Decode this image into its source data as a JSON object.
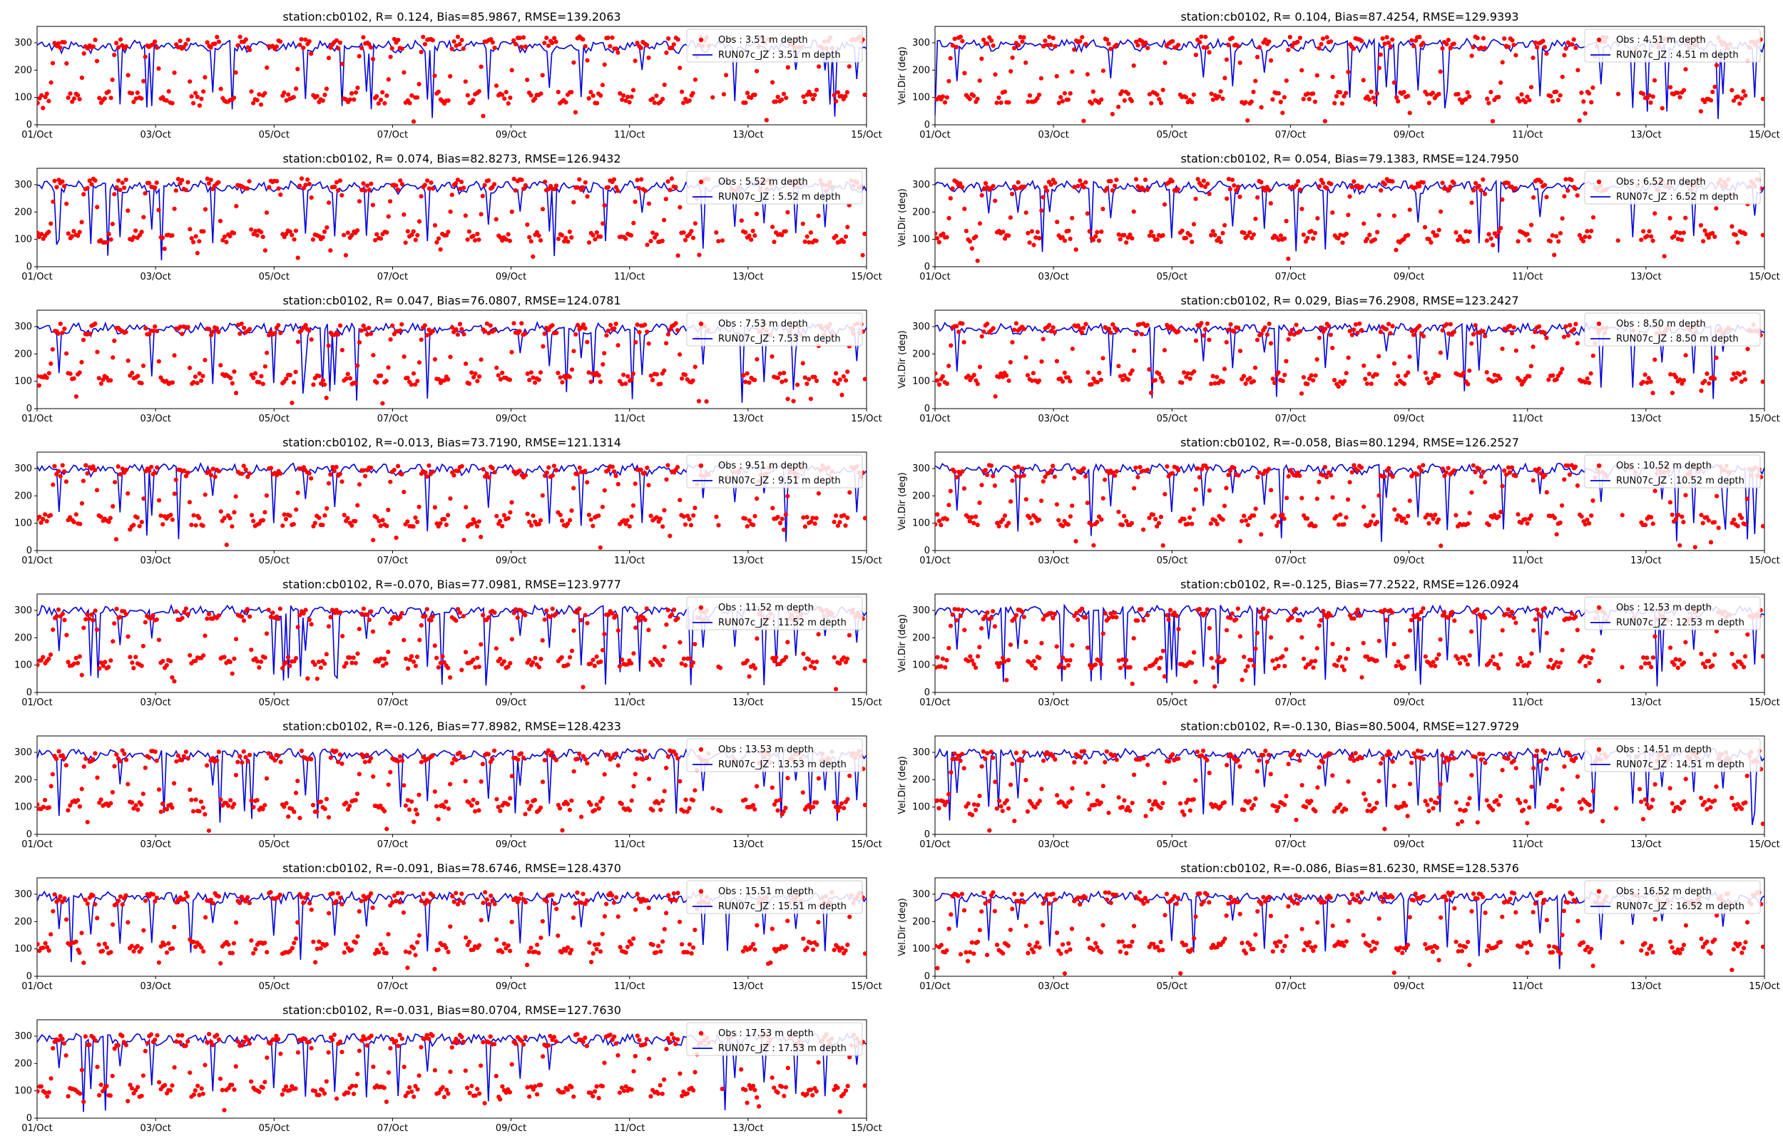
{
  "colors": {
    "obs": "#ff0000",
    "model": "#0000dd",
    "axes": "#000000",
    "legend_bg": "#ffffff",
    "legend_border": "#cccccc"
  },
  "chart_data": [
    {
      "type": "scatter+line",
      "title": "station:cb0102, R= 0.124, Bias=85.9867, RMSE=139.2063",
      "ylabel": "",
      "xlim": [
        "01/Oct",
        "15/Oct"
      ],
      "ylim": [
        0,
        360
      ],
      "yticks": [
        0,
        100,
        200,
        300
      ],
      "xticks": [
        "01/Oct",
        "03/Oct",
        "05/Oct",
        "07/Oct",
        "09/Oct",
        "11/Oct",
        "13/Oct",
        "15/Oct"
      ],
      "legend_position": "upper right",
      "series": [
        {
          "name": "Obs : 3.51 m depth",
          "kind": "scatter",
          "low_level": 100,
          "high_level": 300
        },
        {
          "name": "RUN07c_JZ : 3.51 m depth",
          "kind": "line",
          "base_level": 285
        }
      ]
    },
    {
      "type": "scatter+line",
      "title": "station:cb0102, R= 0.104, Bias=87.4254, RMSE=129.9393",
      "ylabel": "Vel.Dir (deg)",
      "xlim": [
        "01/Oct",
        "15/Oct"
      ],
      "ylim": [
        0,
        360
      ],
      "yticks": [
        0,
        100,
        200,
        300
      ],
      "xticks": [
        "01/Oct",
        "03/Oct",
        "05/Oct",
        "07/Oct",
        "09/Oct",
        "11/Oct",
        "13/Oct",
        "15/Oct"
      ],
      "legend_position": "upper right",
      "series": [
        {
          "name": "Obs : 4.51 m depth",
          "kind": "scatter",
          "low_level": 100,
          "high_level": 300
        },
        {
          "name": "RUN07c_JZ : 4.51 m depth",
          "kind": "line",
          "base_level": 290
        }
      ]
    },
    {
      "type": "scatter+line",
      "title": "station:cb0102, R= 0.074, Bias=82.8273, RMSE=126.9432",
      "ylabel": "",
      "xlim": [
        "01/Oct",
        "15/Oct"
      ],
      "ylim": [
        0,
        360
      ],
      "yticks": [
        0,
        100,
        200,
        300
      ],
      "xticks": [
        "01/Oct",
        "03/Oct",
        "05/Oct",
        "07/Oct",
        "09/Oct",
        "11/Oct",
        "13/Oct",
        "15/Oct"
      ],
      "legend_position": "upper right",
      "series": [
        {
          "name": "Obs : 5.52 m depth",
          "kind": "scatter",
          "low_level": 110,
          "high_level": 300
        },
        {
          "name": "RUN07c_JZ : 5.52 m depth",
          "kind": "line",
          "base_level": 290
        }
      ]
    },
    {
      "type": "scatter+line",
      "title": "station:cb0102, R= 0.054, Bias=79.1383, RMSE=124.7950",
      "ylabel": "Vel.Dir (deg)",
      "xlim": [
        "01/Oct",
        "15/Oct"
      ],
      "ylim": [
        0,
        360
      ],
      "yticks": [
        0,
        100,
        200,
        300
      ],
      "xticks": [
        "01/Oct",
        "03/Oct",
        "05/Oct",
        "07/Oct",
        "09/Oct",
        "11/Oct",
        "13/Oct",
        "15/Oct"
      ],
      "legend_position": "upper right",
      "series": [
        {
          "name": "Obs : 6.52 m depth",
          "kind": "scatter",
          "low_level": 110,
          "high_level": 300
        },
        {
          "name": "RUN07c_JZ : 6.52 m depth",
          "kind": "line",
          "base_level": 290
        }
      ]
    },
    {
      "type": "scatter+line",
      "title": "station:cb0102, R= 0.047, Bias=76.0807, RMSE=124.0781",
      "ylabel": "",
      "xlim": [
        "01/Oct",
        "15/Oct"
      ],
      "ylim": [
        0,
        360
      ],
      "yticks": [
        0,
        100,
        200,
        300
      ],
      "xticks": [
        "01/Oct",
        "03/Oct",
        "05/Oct",
        "07/Oct",
        "09/Oct",
        "11/Oct",
        "13/Oct",
        "15/Oct"
      ],
      "legend_position": "upper right",
      "series": [
        {
          "name": "Obs : 7.53 m depth",
          "kind": "scatter",
          "low_level": 110,
          "high_level": 290
        },
        {
          "name": "RUN07c_JZ : 7.53 m depth",
          "kind": "line",
          "base_level": 290
        }
      ]
    },
    {
      "type": "scatter+line",
      "title": "station:cb0102, R= 0.029, Bias=76.2908, RMSE=123.2427",
      "ylabel": "Vel.Dir (deg)",
      "xlim": [
        "01/Oct",
        "15/Oct"
      ],
      "ylim": [
        0,
        360
      ],
      "yticks": [
        0,
        100,
        200,
        300
      ],
      "xticks": [
        "01/Oct",
        "03/Oct",
        "05/Oct",
        "07/Oct",
        "09/Oct",
        "11/Oct",
        "13/Oct",
        "15/Oct"
      ],
      "legend_position": "upper right",
      "series": [
        {
          "name": "Obs : 8.50 m depth",
          "kind": "scatter",
          "low_level": 110,
          "high_level": 290
        },
        {
          "name": "RUN07c_JZ : 8.50 m depth",
          "kind": "line",
          "base_level": 290
        }
      ]
    },
    {
      "type": "scatter+line",
      "title": "station:cb0102, R=-0.013, Bias=73.7190, RMSE=121.1314",
      "ylabel": "",
      "xlim": [
        "01/Oct",
        "15/Oct"
      ],
      "ylim": [
        0,
        360
      ],
      "yticks": [
        0,
        100,
        200,
        300
      ],
      "xticks": [
        "01/Oct",
        "03/Oct",
        "05/Oct",
        "07/Oct",
        "09/Oct",
        "11/Oct",
        "13/Oct",
        "15/Oct"
      ],
      "legend_position": "upper right",
      "series": [
        {
          "name": "Obs : 9.51 m depth",
          "kind": "scatter",
          "low_level": 110,
          "high_level": 290
        },
        {
          "name": "RUN07c_JZ : 9.51 m depth",
          "kind": "line",
          "base_level": 295
        }
      ]
    },
    {
      "type": "scatter+line",
      "title": "station:cb0102, R=-0.058, Bias=80.1294, RMSE=126.2527",
      "ylabel": "Vel.Dir (deg)",
      "xlim": [
        "01/Oct",
        "15/Oct"
      ],
      "ylim": [
        0,
        360
      ],
      "yticks": [
        0,
        100,
        200,
        300
      ],
      "xticks": [
        "01/Oct",
        "03/Oct",
        "05/Oct",
        "07/Oct",
        "09/Oct",
        "11/Oct",
        "13/Oct",
        "15/Oct"
      ],
      "legend_position": "upper right",
      "series": [
        {
          "name": "Obs : 10.52 m depth",
          "kind": "scatter",
          "low_level": 110,
          "high_level": 290
        },
        {
          "name": "RUN07c_JZ : 10.52 m depth",
          "kind": "line",
          "base_level": 295
        }
      ]
    },
    {
      "type": "scatter+line",
      "title": "station:cb0102, R=-0.070, Bias=77.0981, RMSE=123.9777",
      "ylabel": "",
      "xlim": [
        "01/Oct",
        "15/Oct"
      ],
      "ylim": [
        0,
        360
      ],
      "yticks": [
        0,
        100,
        200,
        300
      ],
      "xticks": [
        "01/Oct",
        "03/Oct",
        "05/Oct",
        "07/Oct",
        "09/Oct",
        "11/Oct",
        "13/Oct",
        "15/Oct"
      ],
      "legend_position": "upper right",
      "series": [
        {
          "name": "Obs : 11.52 m depth",
          "kind": "scatter",
          "low_level": 110,
          "high_level": 285
        },
        {
          "name": "RUN07c_JZ : 11.52 m depth",
          "kind": "line",
          "base_level": 295
        }
      ]
    },
    {
      "type": "scatter+line",
      "title": "station:cb0102, R=-0.125, Bias=77.2522, RMSE=126.0924",
      "ylabel": "Vel.Dir (deg)",
      "xlim": [
        "01/Oct",
        "15/Oct"
      ],
      "ylim": [
        0,
        360
      ],
      "yticks": [
        0,
        100,
        200,
        300
      ],
      "xticks": [
        "01/Oct",
        "03/Oct",
        "05/Oct",
        "07/Oct",
        "09/Oct",
        "11/Oct",
        "13/Oct",
        "15/Oct"
      ],
      "legend_position": "upper right",
      "series": [
        {
          "name": "Obs : 12.53 m depth",
          "kind": "scatter",
          "low_level": 110,
          "high_level": 285
        },
        {
          "name": "RUN07c_JZ : 12.53 m depth",
          "kind": "line",
          "base_level": 295
        }
      ]
    },
    {
      "type": "scatter+line",
      "title": "station:cb0102, R=-0.126, Bias=77.8982, RMSE=128.4233",
      "ylabel": "",
      "xlim": [
        "01/Oct",
        "15/Oct"
      ],
      "ylim": [
        0,
        360
      ],
      "yticks": [
        0,
        100,
        200,
        300
      ],
      "xticks": [
        "01/Oct",
        "03/Oct",
        "05/Oct",
        "07/Oct",
        "09/Oct",
        "11/Oct",
        "13/Oct",
        "15/Oct"
      ],
      "legend_position": "upper right",
      "series": [
        {
          "name": "Obs : 13.53 m depth",
          "kind": "scatter",
          "low_level": 105,
          "high_level": 285
        },
        {
          "name": "RUN07c_JZ : 13.53 m depth",
          "kind": "line",
          "base_level": 290
        }
      ]
    },
    {
      "type": "scatter+line",
      "title": "station:cb0102, R=-0.130, Bias=80.5004, RMSE=127.9729",
      "ylabel": "Vel.Dir (deg)",
      "xlim": [
        "01/Oct",
        "15/Oct"
      ],
      "ylim": [
        0,
        360
      ],
      "yticks": [
        0,
        100,
        200,
        300
      ],
      "xticks": [
        "01/Oct",
        "03/Oct",
        "05/Oct",
        "07/Oct",
        "09/Oct",
        "11/Oct",
        "13/Oct",
        "15/Oct"
      ],
      "legend_position": "upper right",
      "series": [
        {
          "name": "Obs : 14.51 m depth",
          "kind": "scatter",
          "low_level": 105,
          "high_level": 285
        },
        {
          "name": "RUN07c_JZ : 14.51 m depth",
          "kind": "line",
          "base_level": 290
        }
      ]
    },
    {
      "type": "scatter+line",
      "title": "station:cb0102, R=-0.091, Bias=78.6746, RMSE=128.4370",
      "ylabel": "",
      "xlim": [
        "01/Oct",
        "15/Oct"
      ],
      "ylim": [
        0,
        360
      ],
      "yticks": [
        0,
        100,
        200,
        300
      ],
      "xticks": [
        "01/Oct",
        "03/Oct",
        "05/Oct",
        "07/Oct",
        "09/Oct",
        "11/Oct",
        "13/Oct",
        "15/Oct"
      ],
      "legend_position": "upper right",
      "series": [
        {
          "name": "Obs : 15.51 m depth",
          "kind": "scatter",
          "low_level": 105,
          "high_level": 285
        },
        {
          "name": "RUN07c_JZ : 15.51 m depth",
          "kind": "line",
          "base_level": 285
        }
      ]
    },
    {
      "type": "scatter+line",
      "title": "station:cb0102, R=-0.086, Bias=81.6230, RMSE=128.5376",
      "ylabel": "Vel.Dir (deg)",
      "xlim": [
        "01/Oct",
        "15/Oct"
      ],
      "ylim": [
        0,
        360
      ],
      "yticks": [
        0,
        100,
        200,
        300
      ],
      "xticks": [
        "01/Oct",
        "03/Oct",
        "05/Oct",
        "07/Oct",
        "09/Oct",
        "11/Oct",
        "13/Oct",
        "15/Oct"
      ],
      "legend_position": "upper right",
      "series": [
        {
          "name": "Obs : 16.52 m depth",
          "kind": "scatter",
          "low_level": 105,
          "high_level": 285
        },
        {
          "name": "RUN07c_JZ : 16.52 m depth",
          "kind": "line",
          "base_level": 285
        }
      ]
    },
    {
      "type": "scatter+line",
      "title": "station:cb0102, R=-0.031, Bias=80.0704, RMSE=127.7630",
      "ylabel": "",
      "xlim": [
        "01/Oct",
        "15/Oct"
      ],
      "ylim": [
        0,
        360
      ],
      "yticks": [
        0,
        100,
        200,
        300
      ],
      "xticks": [
        "01/Oct",
        "03/Oct",
        "05/Oct",
        "07/Oct",
        "09/Oct",
        "11/Oct",
        "13/Oct",
        "15/Oct"
      ],
      "legend_position": "upper right",
      "series": [
        {
          "name": "Obs : 17.53 m depth",
          "kind": "scatter",
          "low_level": 100,
          "high_level": 285
        },
        {
          "name": "RUN07c_JZ : 17.53 m depth",
          "kind": "line",
          "base_level": 285
        }
      ]
    }
  ]
}
